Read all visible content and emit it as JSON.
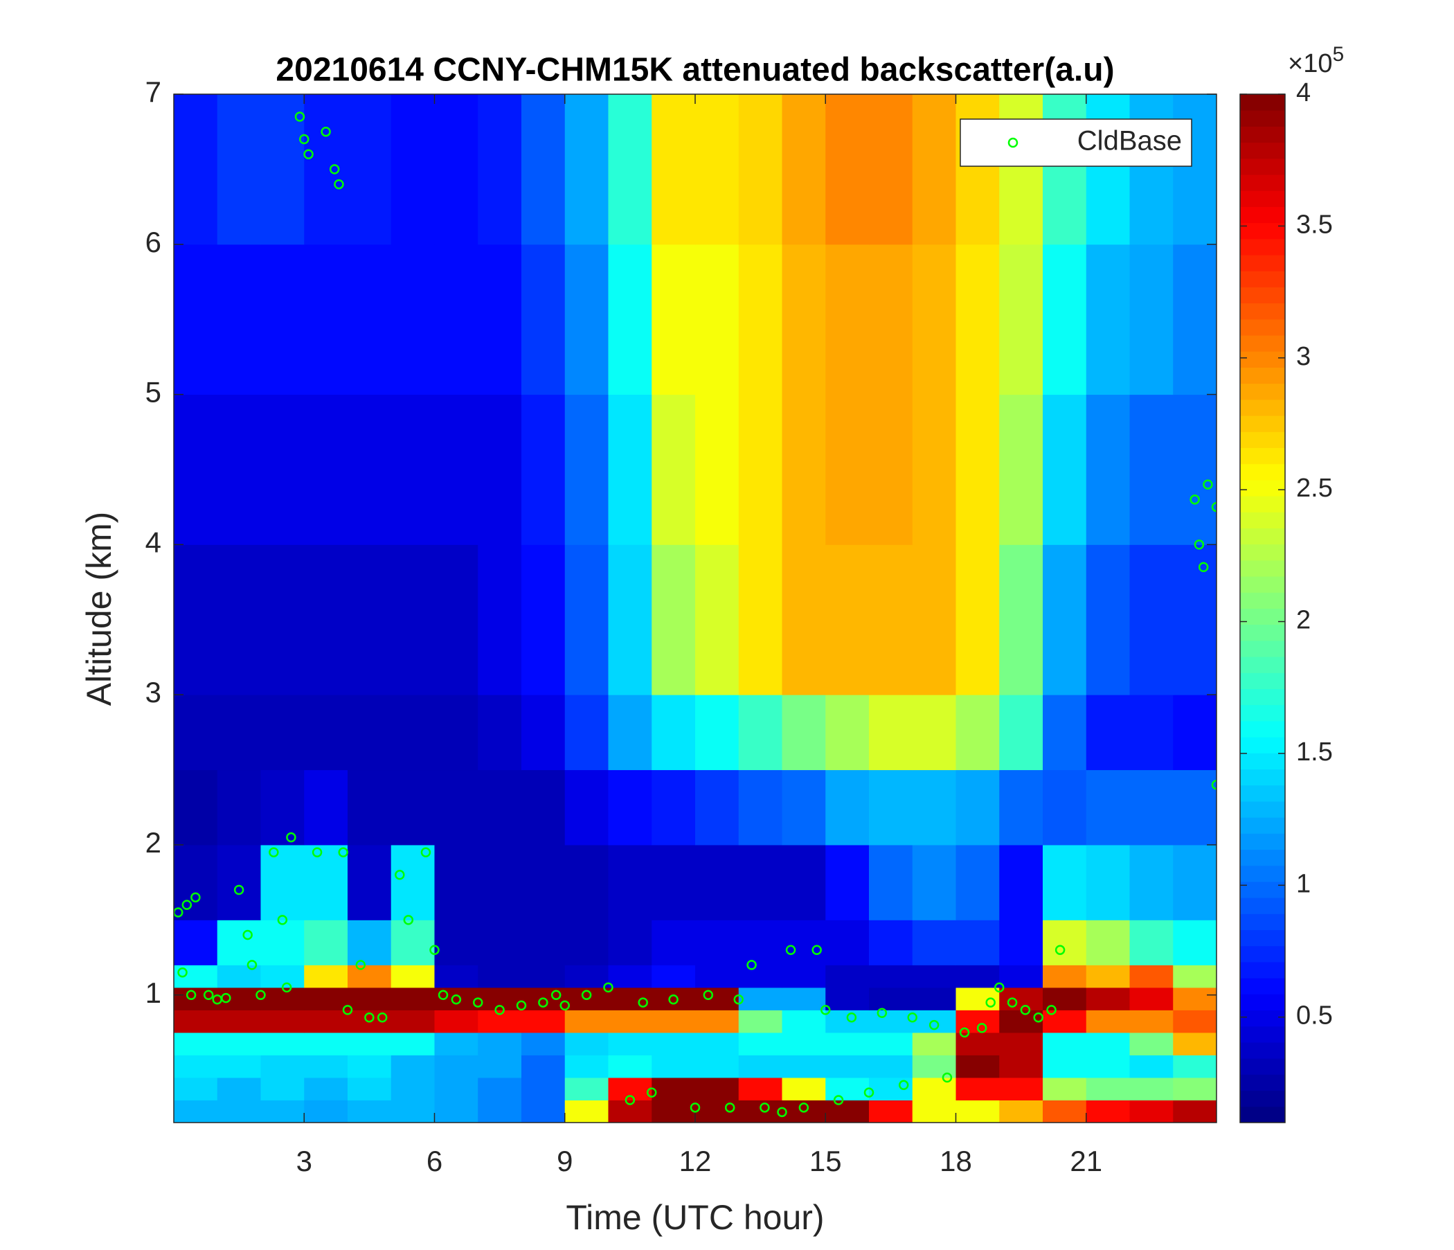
{
  "chart_data": {
    "type": "heatmap",
    "title": "20210614 CCNY-CHM15K attenuated backscatter(a.u)",
    "x_label": "Time (UTC hour)",
    "y_label": "Altitude (km)",
    "colorbar_multiplier": {
      "base": "×10",
      "exponent": "5"
    },
    "colormap": "jet",
    "xlim": [
      0,
      24
    ],
    "ylim": [
      0.15,
      7
    ],
    "clim": [
      0.1,
      4
    ],
    "xticks": [
      3,
      6,
      9,
      12,
      15,
      18,
      21
    ],
    "yticks": [
      1,
      2,
      3,
      4,
      5,
      6,
      7
    ],
    "cticks": [
      0.5,
      1,
      1.5,
      2,
      2.5,
      3,
      3.5,
      4
    ],
    "x_edges": [
      0,
      1,
      2,
      3,
      4,
      5,
      6,
      7,
      8,
      9,
      10,
      11,
      12,
      13,
      14,
      15,
      16,
      17,
      18,
      19,
      20,
      21,
      22,
      23,
      24
    ],
    "y_edges": [
      0.15,
      0.3,
      0.45,
      0.6,
      0.75,
      0.9,
      1.05,
      1.2,
      1.5,
      2,
      2.5,
      3,
      4,
      5,
      6,
      7
    ],
    "z": [
      [
        1.3,
        1.3,
        1.3,
        1.2,
        1.3,
        1.3,
        1.2,
        1.1,
        1.0,
        2.5,
        3.8,
        4,
        4,
        4,
        4,
        4,
        3.5,
        2.5,
        2.5,
        2.8,
        3.2,
        3.5,
        3.6,
        3.8
      ],
      [
        1.4,
        1.3,
        1.4,
        1.3,
        1.4,
        1.3,
        1.2,
        1.1,
        1.0,
        1.8,
        3.5,
        4,
        4,
        3.5,
        2.5,
        1.6,
        1.5,
        2.5,
        3.5,
        3.5,
        2.2,
        2.0,
        2.0,
        2.1
      ],
      [
        1.5,
        1.5,
        1.4,
        1.4,
        1.5,
        1.3,
        1.2,
        1.2,
        1.0,
        1.5,
        1.6,
        1.5,
        1.5,
        1.4,
        1.4,
        1.4,
        1.4,
        2.0,
        4,
        3.8,
        1.6,
        1.6,
        1.5,
        1.7
      ],
      [
        1.6,
        1.6,
        1.6,
        1.6,
        1.6,
        1.6,
        1.3,
        1.2,
        1.1,
        1.4,
        1.5,
        1.5,
        1.5,
        1.6,
        1.6,
        1.6,
        1.6,
        2.2,
        3.8,
        3.8,
        1.6,
        1.6,
        2.0,
        2.8
      ],
      [
        3.8,
        3.8,
        3.8,
        3.8,
        3.8,
        3.8,
        3.6,
        3.5,
        3.5,
        3.0,
        3.0,
        3.0,
        3.0,
        2.0,
        1.6,
        1.4,
        1.4,
        1.4,
        3.5,
        4,
        3.5,
        3.0,
        3.0,
        3.2
      ],
      [
        4,
        4,
        4,
        4,
        4,
        4,
        4,
        4,
        4,
        4,
        4,
        4,
        4,
        1.2,
        1.2,
        0.4,
        0.3,
        0.3,
        2.5,
        3.8,
        4,
        3.8,
        3.6,
        3.0
      ],
      [
        1.6,
        1.4,
        1.5,
        2.6,
        3.0,
        2.5,
        0.4,
        0.3,
        0.3,
        0.4,
        0.5,
        0.6,
        0.5,
        0.5,
        0.5,
        0.4,
        0.4,
        0.4,
        0.4,
        0.5,
        3.0,
        2.8,
        3.2,
        2.2
      ],
      [
        0.6,
        1.6,
        1.6,
        1.8,
        1.3,
        1.8,
        0.3,
        0.3,
        0.3,
        0.3,
        0.4,
        0.5,
        0.5,
        0.5,
        0.5,
        0.5,
        0.7,
        0.8,
        0.8,
        0.6,
        2.4,
        2.2,
        1.8,
        1.6
      ],
      [
        0.3,
        0.4,
        1.5,
        1.5,
        0.4,
        1.5,
        0.3,
        0.3,
        0.3,
        0.3,
        0.4,
        0.4,
        0.4,
        0.4,
        0.4,
        0.6,
        1.0,
        1.1,
        1.0,
        0.6,
        1.5,
        1.4,
        1.3,
        1.2
      ],
      [
        0.25,
        0.3,
        0.4,
        0.5,
        0.3,
        0.3,
        0.3,
        0.3,
        0.3,
        0.5,
        0.6,
        0.7,
        0.8,
        0.9,
        1.0,
        1.2,
        1.3,
        1.3,
        1.2,
        1.0,
        0.9,
        1.0,
        1.0,
        1.0
      ],
      [
        0.3,
        0.3,
        0.3,
        0.3,
        0.3,
        0.3,
        0.3,
        0.4,
        0.5,
        0.8,
        1.2,
        1.5,
        1.6,
        1.8,
        2.0,
        2.2,
        2.4,
        2.4,
        2.2,
        1.8,
        1.0,
        0.7,
        0.7,
        0.6
      ],
      [
        0.4,
        0.4,
        0.4,
        0.4,
        0.4,
        0.4,
        0.4,
        0.5,
        0.6,
        0.9,
        1.4,
        2.2,
        2.4,
        2.6,
        2.8,
        2.8,
        2.8,
        2.8,
        2.6,
        2.0,
        1.2,
        0.9,
        0.8,
        0.8
      ],
      [
        0.5,
        0.5,
        0.5,
        0.5,
        0.5,
        0.5,
        0.5,
        0.5,
        0.7,
        1.0,
        1.5,
        2.4,
        2.5,
        2.6,
        2.8,
        2.9,
        2.9,
        2.8,
        2.6,
        2.2,
        1.4,
        1.1,
        1.0,
        1.0
      ],
      [
        0.6,
        0.6,
        0.6,
        0.6,
        0.6,
        0.6,
        0.6,
        0.6,
        0.8,
        1.1,
        1.6,
        2.5,
        2.5,
        2.6,
        2.8,
        2.9,
        2.9,
        2.8,
        2.6,
        2.3,
        1.6,
        1.3,
        1.2,
        1.1
      ],
      [
        0.7,
        0.8,
        0.8,
        0.7,
        0.7,
        0.6,
        0.6,
        0.7,
        0.9,
        1.2,
        1.7,
        2.6,
        2.6,
        2.7,
        2.9,
        3.0,
        3.0,
        2.9,
        2.7,
        2.4,
        1.8,
        1.5,
        1.3,
        1.2
      ]
    ],
    "legend": "northeast",
    "series": [
      {
        "name": "CldBase",
        "type": "scatter",
        "color": "#00ff00",
        "x": [
          0.1,
          0.3,
          0.5,
          0.2,
          0.4,
          0.8,
          1,
          1.2,
          1.5,
          1.7,
          1.8,
          2,
          2.3,
          2.5,
          2.6,
          2.7,
          2.9,
          3,
          3.1,
          3.3,
          3.5,
          3.7,
          3.8,
          3.9,
          4,
          4.3,
          4.5,
          4.8,
          5.2,
          5.4,
          5.8,
          6,
          6.2,
          6.5,
          7,
          7.5,
          8,
          8.5,
          8.8,
          9,
          9.5,
          10,
          10.5,
          10.8,
          11,
          11.5,
          12,
          12.3,
          12.8,
          13,
          13.3,
          13.6,
          14,
          14.2,
          14.5,
          14.8,
          15,
          15.3,
          15.6,
          16,
          16.3,
          16.8,
          17,
          17.5,
          17.8,
          18.2,
          18.6,
          18.8,
          19,
          19.3,
          19.6,
          19.9,
          20.2,
          20.4,
          23.5,
          23.6,
          23.7,
          23.8,
          24,
          24
        ],
        "values": [
          1.55,
          1.6,
          1.65,
          1.15,
          1.0,
          1.0,
          0.97,
          0.98,
          1.7,
          1.4,
          1.2,
          1.0,
          1.95,
          1.5,
          1.05,
          2.05,
          6.85,
          6.7,
          6.6,
          1.95,
          6.75,
          6.5,
          6.4,
          1.95,
          0.9,
          1.2,
          0.85,
          0.85,
          1.8,
          1.5,
          1.95,
          1.3,
          1.0,
          0.97,
          0.95,
          0.9,
          0.93,
          0.95,
          1.0,
          0.93,
          1.0,
          1.05,
          0.3,
          0.95,
          0.35,
          0.97,
          0.25,
          1.0,
          0.25,
          0.97,
          1.2,
          0.25,
          0.22,
          1.3,
          0.25,
          1.3,
          0.9,
          0.3,
          0.85,
          0.35,
          0.88,
          0.4,
          0.85,
          0.8,
          0.45,
          0.75,
          0.78,
          0.95,
          1.05,
          0.95,
          0.9,
          0.85,
          0.9,
          1.3,
          4.3,
          4.0,
          3.85,
          4.4,
          4.25,
          2.4
        ]
      }
    ]
  }
}
